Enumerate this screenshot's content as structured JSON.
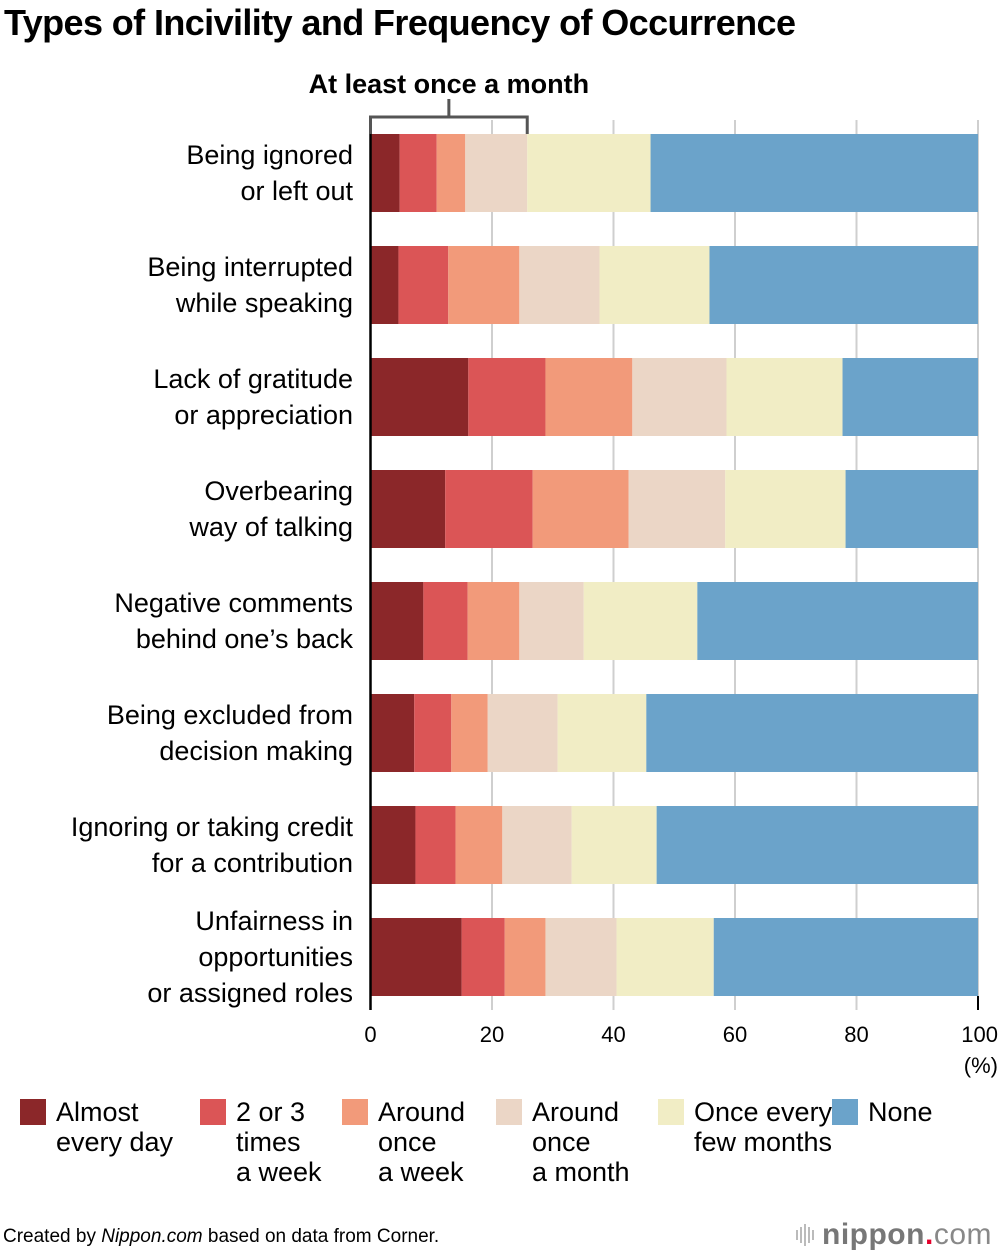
{
  "chart_data": {
    "type": "bar",
    "orientation": "horizontal-stacked-100",
    "title": "Types of Incivility and Frequency of Occurrence",
    "bracket_annotation": {
      "label": "At least once a month",
      "spans_series": [
        "Almost every day",
        "2 or 3 times a week",
        "Around once a week",
        "Around once a month"
      ]
    },
    "categories": [
      [
        "Being ignored",
        "or left out"
      ],
      [
        "Being interrupted",
        "while speaking"
      ],
      [
        "Lack of gratitude",
        "or appreciation"
      ],
      [
        "Overbearing",
        "way of talking"
      ],
      [
        "Negative comments",
        "behind one’s back"
      ],
      [
        "Being excluded from",
        "decision making"
      ],
      [
        "Ignoring or taking credit",
        "for a contribution"
      ],
      [
        "Unfairness in",
        "opportunities",
        "or assigned roles"
      ]
    ],
    "series": [
      {
        "name": "Almost every day",
        "legend": "Almost\nevery day",
        "color": "#8b2729",
        "values": [
          4.8,
          4.6,
          16.1,
          12.3,
          8.7,
          7.2,
          7.4,
          15.0
        ]
      },
      {
        "name": "2 or 3 times a week",
        "legend": "2 or 3\ntimes\na week",
        "color": "#db5556",
        "values": [
          6.1,
          8.2,
          12.7,
          14.4,
          7.3,
          6.1,
          6.6,
          7.1
        ]
      },
      {
        "name": "Around once a week",
        "legend": "Around\nonce\na week",
        "color": "#f29a7a",
        "values": [
          4.7,
          11.7,
          14.3,
          15.8,
          8.5,
          6.0,
          7.7,
          6.7
        ]
      },
      {
        "name": "Around once a month",
        "legend": "Around\nonce\na month",
        "color": "#ebd6c6",
        "values": [
          10.2,
          13.2,
          15.5,
          15.9,
          10.6,
          11.5,
          11.4,
          11.7
        ]
      },
      {
        "name": "Once every few months",
        "legend": "Once every\nfew months",
        "color": "#f1edc5",
        "values": [
          20.3,
          18.1,
          19.1,
          19.8,
          18.7,
          14.6,
          14.0,
          16.0
        ]
      },
      {
        "name": "None",
        "legend": "None",
        "color": "#6ba3ca",
        "values": [
          53.9,
          44.2,
          22.3,
          21.8,
          46.2,
          54.6,
          52.9,
          43.5
        ]
      }
    ],
    "xlabel": "",
    "x_unit_label": "(%)",
    "xlim": [
      0,
      100
    ],
    "xticks": [
      0,
      20,
      40,
      60,
      80,
      100
    ],
    "grid": true,
    "legend_position": "bottom"
  },
  "footer": {
    "prefix": "Created by ",
    "source_italic": "Nippon.com",
    "suffix": " based on data from Corner."
  },
  "logo": {
    "name": "nippon",
    "dot": ".",
    "tld": "com"
  }
}
